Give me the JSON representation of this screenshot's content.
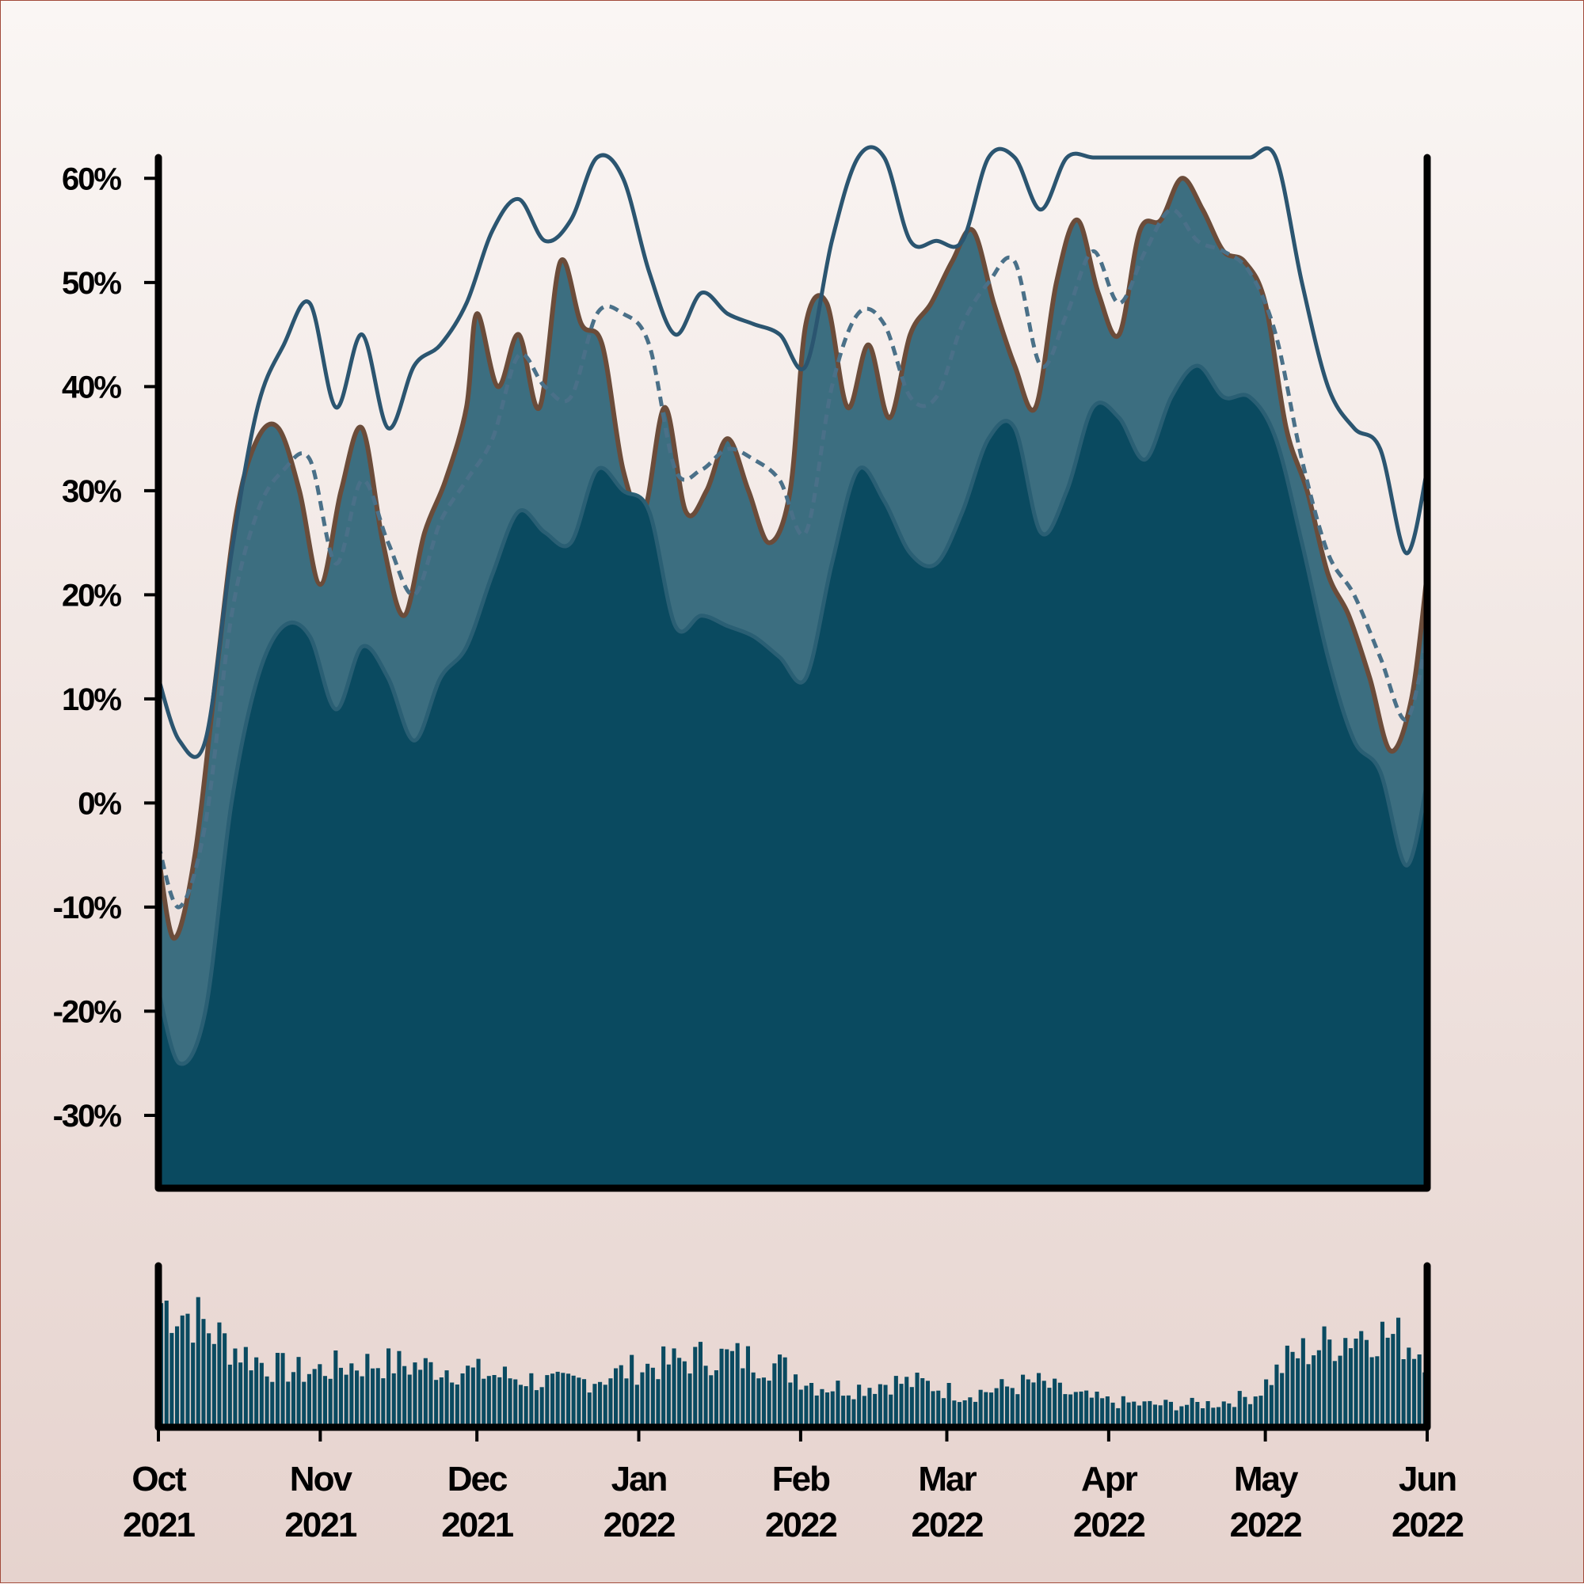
{
  "colors": {
    "area_dark": "#0a4a60",
    "area_mid": "#3c6e80",
    "actual_line": "#6b4c3a",
    "band_line": "#2b5570",
    "mean_line": "#4a7088",
    "axis": "#000000",
    "volume": "#0a4a60"
  },
  "chart_data": [
    {
      "type": "area",
      "title": "",
      "xlabel": "",
      "ylabel": "",
      "y_unit": "%",
      "ylim": [
        -37,
        62
      ],
      "x_range": [
        "2021-10-01",
        "2022-06-01"
      ],
      "yticks": [
        {
          "value": 60,
          "label": "60%"
        },
        {
          "value": 50,
          "label": "50%"
        },
        {
          "value": 40,
          "label": "40%"
        },
        {
          "value": 30,
          "label": "30%"
        },
        {
          "value": 20,
          "label": "20%"
        },
        {
          "value": 10,
          "label": "10%"
        },
        {
          "value": 0,
          "label": "0%"
        },
        {
          "value": -10,
          "label": "-10%"
        },
        {
          "value": -20,
          "label": "-20%"
        },
        {
          "value": -30,
          "label": "-30%"
        }
      ],
      "grid": false,
      "legend": "none",
      "series": [
        {
          "role": "value",
          "x": [
            "2021-10-01",
            "2021-10-04",
            "2021-10-08",
            "2021-10-12",
            "2021-10-16",
            "2021-10-20",
            "2021-10-24",
            "2021-10-28",
            "2021-11-01",
            "2021-11-05",
            "2021-11-09",
            "2021-11-13",
            "2021-11-17",
            "2021-11-21",
            "2021-11-25",
            "2021-11-29",
            "2021-12-01",
            "2021-12-05",
            "2021-12-09",
            "2021-12-13",
            "2021-12-17",
            "2021-12-21",
            "2021-12-25",
            "2021-12-29",
            "2022-01-02",
            "2022-01-06",
            "2022-01-10",
            "2022-01-14",
            "2022-01-18",
            "2022-01-22",
            "2022-01-26",
            "2022-01-30",
            "2022-02-02",
            "2022-02-06",
            "2022-02-10",
            "2022-02-14",
            "2022-02-18",
            "2022-02-22",
            "2022-02-26",
            "2022-03-02",
            "2022-03-06",
            "2022-03-10",
            "2022-03-14",
            "2022-03-18",
            "2022-03-22",
            "2022-03-26",
            "2022-03-30",
            "2022-04-03",
            "2022-04-07",
            "2022-04-11",
            "2022-04-15",
            "2022-04-19",
            "2022-04-23",
            "2022-04-27",
            "2022-05-01",
            "2022-05-05",
            "2022-05-09",
            "2022-05-13",
            "2022-05-17",
            "2022-05-21",
            "2022-05-25",
            "2022-05-29",
            "2022-06-01"
          ],
          "values": [
            -5,
            -13,
            -5,
            12,
            28,
            35,
            36,
            30,
            21,
            30,
            36,
            25,
            18,
            26,
            31,
            38,
            47,
            40,
            45,
            38,
            52,
            46,
            44,
            32,
            28,
            38,
            28,
            30,
            35,
            30,
            25,
            30,
            46,
            48,
            38,
            44,
            37,
            45,
            48,
            52,
            55,
            48,
            42,
            38,
            50,
            56,
            49,
            45,
            55,
            56,
            60,
            57,
            53,
            52,
            48,
            36,
            30,
            22,
            18,
            12,
            5,
            10,
            22
          ]
        },
        {
          "role": "lower-band",
          "x": [
            "2021-10-01",
            "2021-10-05",
            "2021-10-10",
            "2021-10-15",
            "2021-10-20",
            "2021-10-25",
            "2021-10-30",
            "2021-11-04",
            "2021-11-09",
            "2021-11-14",
            "2021-11-19",
            "2021-11-24",
            "2021-11-29",
            "2021-12-04",
            "2021-12-09",
            "2021-12-14",
            "2021-12-19",
            "2021-12-24",
            "2021-12-29",
            "2022-01-03",
            "2022-01-08",
            "2022-01-13",
            "2022-01-18",
            "2022-01-23",
            "2022-01-28",
            "2022-02-02",
            "2022-02-07",
            "2022-02-12",
            "2022-02-17",
            "2022-02-22",
            "2022-02-27",
            "2022-03-04",
            "2022-03-09",
            "2022-03-14",
            "2022-03-19",
            "2022-03-24",
            "2022-03-29",
            "2022-04-03",
            "2022-04-08",
            "2022-04-13",
            "2022-04-18",
            "2022-04-23",
            "2022-04-28",
            "2022-05-03",
            "2022-05-08",
            "2022-05-13",
            "2022-05-18",
            "2022-05-23",
            "2022-05-28",
            "2022-06-01"
          ],
          "values": [
            -18,
            -25,
            -20,
            0,
            12,
            17,
            16,
            9,
            15,
            12,
            6,
            12,
            15,
            22,
            28,
            26,
            25,
            32,
            30,
            28,
            17,
            18,
            17,
            16,
            14,
            12,
            23,
            32,
            29,
            24,
            23,
            28,
            35,
            36,
            26,
            30,
            38,
            37,
            33,
            39,
            42,
            39,
            39,
            35,
            25,
            14,
            6,
            3,
            -6,
            2
          ]
        },
        {
          "role": "mean",
          "style": "dashed",
          "x": [
            "2021-10-01",
            "2021-10-05",
            "2021-10-10",
            "2021-10-15",
            "2021-10-20",
            "2021-10-25",
            "2021-10-30",
            "2021-11-04",
            "2021-11-09",
            "2021-11-14",
            "2021-11-19",
            "2021-11-24",
            "2021-11-29",
            "2021-12-04",
            "2021-12-09",
            "2021-12-14",
            "2021-12-19",
            "2021-12-24",
            "2021-12-29",
            "2022-01-03",
            "2022-01-08",
            "2022-01-13",
            "2022-01-18",
            "2022-01-23",
            "2022-01-28",
            "2022-02-02",
            "2022-02-07",
            "2022-02-12",
            "2022-02-17",
            "2022-02-22",
            "2022-02-27",
            "2022-03-04",
            "2022-03-09",
            "2022-03-14",
            "2022-03-19",
            "2022-03-24",
            "2022-03-29",
            "2022-04-03",
            "2022-04-08",
            "2022-04-13",
            "2022-04-18",
            "2022-04-23",
            "2022-04-28",
            "2022-05-03",
            "2022-05-08",
            "2022-05-13",
            "2022-05-18",
            "2022-05-23",
            "2022-05-28",
            "2022-06-01"
          ],
          "values": [
            -4,
            -10,
            -2,
            18,
            28,
            32,
            33,
            23,
            31,
            25,
            20,
            27,
            31,
            35,
            43,
            40,
            39,
            47,
            47,
            44,
            32,
            32,
            34,
            33,
            31,
            26,
            40,
            47,
            46,
            39,
            39,
            46,
            50,
            52,
            42,
            47,
            53,
            48,
            53,
            57,
            54,
            53,
            51,
            45,
            33,
            24,
            20,
            14,
            8,
            16
          ]
        },
        {
          "role": "upper-band",
          "x": [
            "2021-10-01",
            "2021-10-05",
            "2021-10-10",
            "2021-10-15",
            "2021-10-20",
            "2021-10-25",
            "2021-10-30",
            "2021-11-04",
            "2021-11-09",
            "2021-11-14",
            "2021-11-19",
            "2021-11-24",
            "2021-11-29",
            "2021-12-04",
            "2021-12-09",
            "2021-12-14",
            "2021-12-19",
            "2021-12-24",
            "2021-12-29",
            "2022-01-03",
            "2022-01-08",
            "2022-01-13",
            "2022-01-18",
            "2022-01-23",
            "2022-01-28",
            "2022-02-02",
            "2022-02-07",
            "2022-02-12",
            "2022-02-17",
            "2022-02-22",
            "2022-02-27",
            "2022-03-04",
            "2022-03-09",
            "2022-03-14",
            "2022-03-19",
            "2022-03-24",
            "2022-03-29",
            "2022-04-03",
            "2022-04-08",
            "2022-04-13",
            "2022-04-18",
            "2022-04-23",
            "2022-04-28",
            "2022-05-03",
            "2022-05-08",
            "2022-05-13",
            "2022-05-18",
            "2022-05-23",
            "2022-05-28",
            "2022-06-01"
          ],
          "values": [
            12,
            6,
            6,
            24,
            38,
            44,
            48,
            38,
            45,
            36,
            42,
            44,
            48,
            55,
            58,
            54,
            56,
            62,
            60,
            51,
            45,
            49,
            47,
            46,
            45,
            42,
            54,
            62,
            62,
            54,
            54,
            54,
            62,
            62,
            57,
            62,
            62,
            62,
            62,
            62,
            62,
            62,
            62,
            62,
            50,
            40,
            36,
            34,
            24,
            32
          ]
        }
      ]
    },
    {
      "type": "bar",
      "role": "volume",
      "x_range": [
        "2021-10-01",
        "2022-06-01"
      ],
      "xticks": [
        {
          "date": "2021-10-01",
          "month": "Oct",
          "year": "2021"
        },
        {
          "date": "2021-11-01",
          "month": "Nov",
          "year": "2021"
        },
        {
          "date": "2021-12-01",
          "month": "Dec",
          "year": "2021"
        },
        {
          "date": "2022-01-01",
          "month": "Jan",
          "year": "2022"
        },
        {
          "date": "2022-02-01",
          "month": "Feb",
          "year": "2022"
        },
        {
          "date": "2022-03-01",
          "month": "Mar",
          "year": "2022"
        },
        {
          "date": "2022-04-01",
          "month": "Apr",
          "year": "2022"
        },
        {
          "date": "2022-05-01",
          "month": "May",
          "year": "2022"
        },
        {
          "date": "2022-06-01",
          "month": "Jun",
          "year": "2022"
        }
      ],
      "level_x": [
        "2021-10-01",
        "2021-10-08",
        "2021-10-15",
        "2021-10-22",
        "2021-10-29",
        "2021-11-05",
        "2021-11-12",
        "2021-11-19",
        "2021-11-26",
        "2021-12-03",
        "2021-12-10",
        "2021-12-17",
        "2021-12-24",
        "2021-12-31",
        "2022-01-07",
        "2022-01-14",
        "2022-01-21",
        "2022-01-28",
        "2022-02-04",
        "2022-02-11",
        "2022-02-18",
        "2022-02-25",
        "2022-03-04",
        "2022-03-11",
        "2022-03-18",
        "2022-03-25",
        "2022-04-01",
        "2022-04-08",
        "2022-04-15",
        "2022-04-22",
        "2022-04-29",
        "2022-05-06",
        "2022-05-13",
        "2022-05-20",
        "2022-05-27",
        "2022-06-01"
      ],
      "level_values": [
        0.78,
        0.68,
        0.5,
        0.38,
        0.34,
        0.38,
        0.4,
        0.38,
        0.36,
        0.33,
        0.3,
        0.27,
        0.3,
        0.36,
        0.4,
        0.44,
        0.43,
        0.38,
        0.26,
        0.24,
        0.28,
        0.27,
        0.2,
        0.24,
        0.28,
        0.2,
        0.16,
        0.14,
        0.14,
        0.15,
        0.2,
        0.44,
        0.52,
        0.6,
        0.55,
        0.45
      ]
    }
  ]
}
